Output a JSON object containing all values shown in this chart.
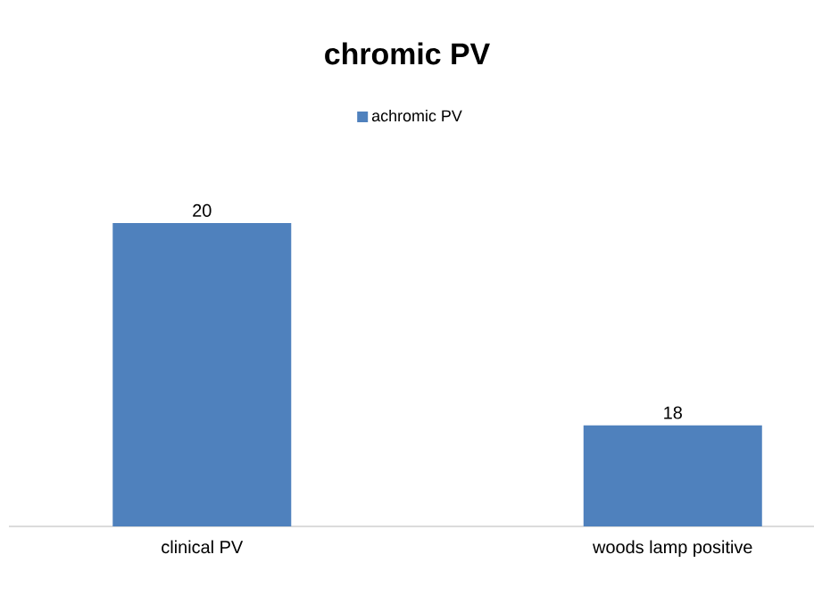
{
  "chart_data": {
    "type": "bar",
    "title": "chromic PV",
    "categories": [
      "clinical  PV",
      "woods lamp positive"
    ],
    "series": [
      {
        "name": "achromic PV",
        "color": "#4f81bd",
        "values": [
          20,
          18
        ]
      }
    ],
    "ylim": [
      17,
      20
    ],
    "data_labels": true,
    "legend": "top"
  }
}
